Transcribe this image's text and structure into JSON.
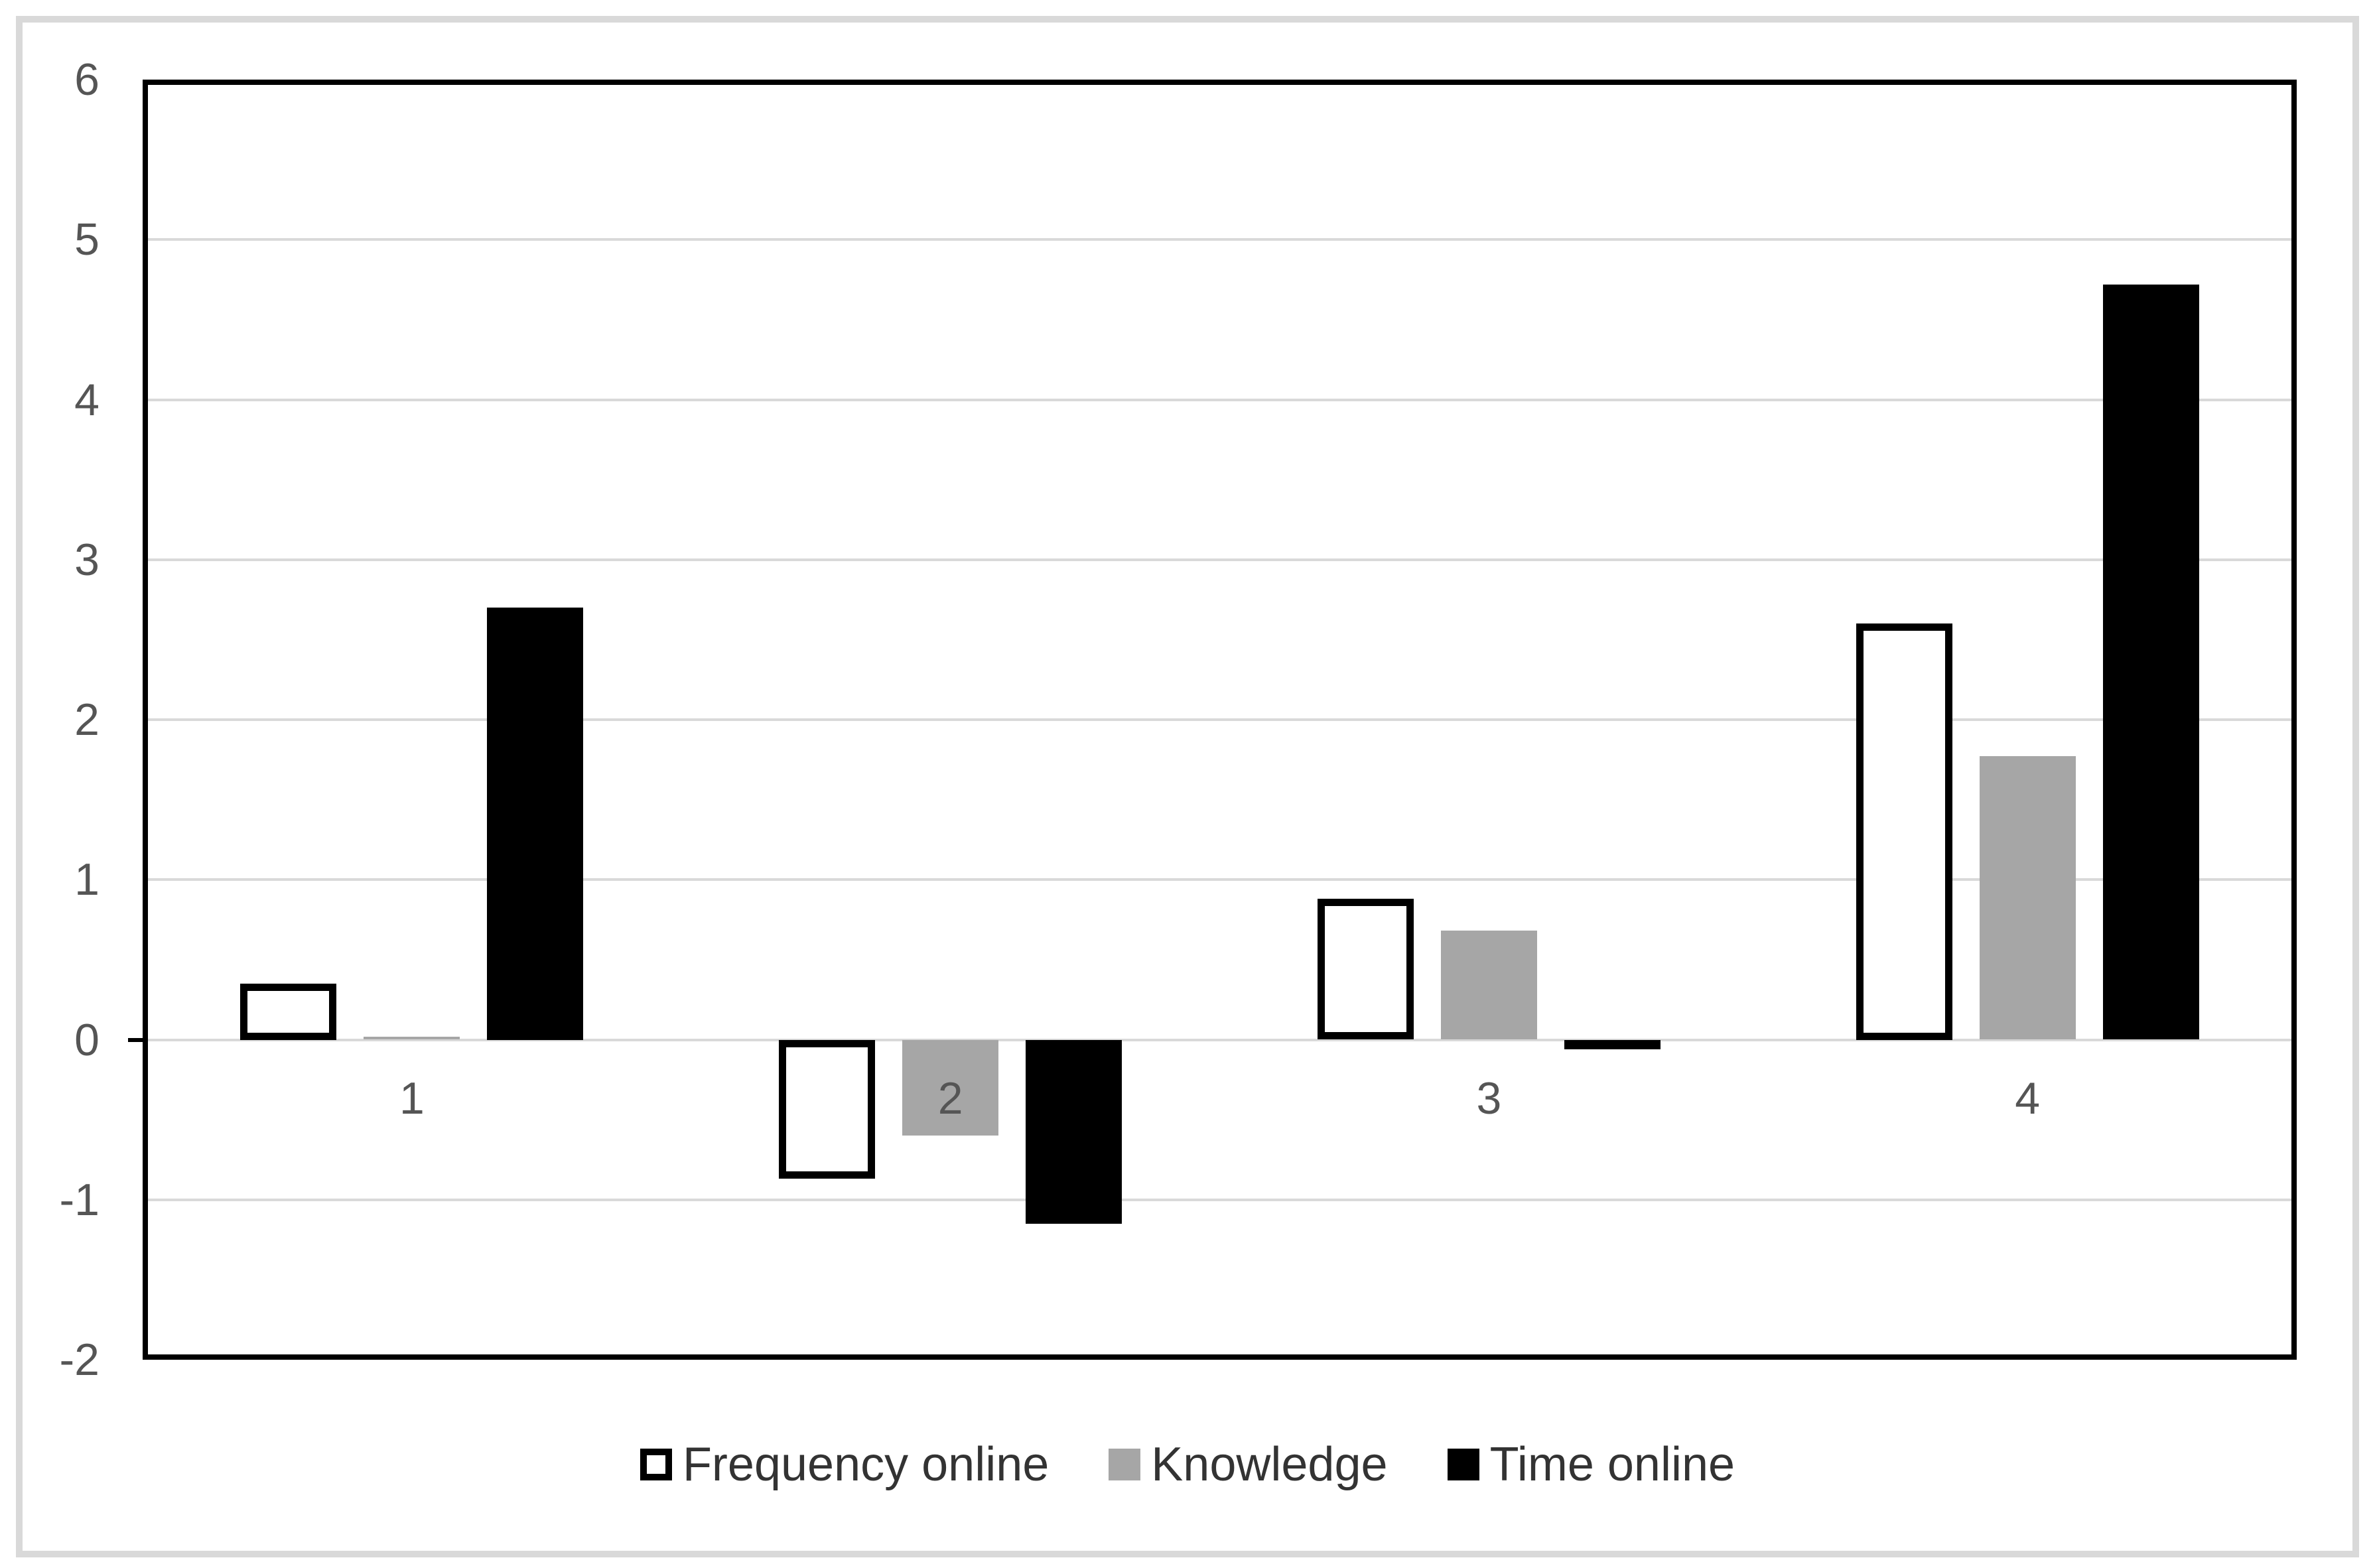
{
  "chart_data": {
    "type": "bar",
    "title": "",
    "xlabel": "",
    "ylabel": "",
    "categories": [
      "1",
      "2",
      "3",
      "4"
    ],
    "series": [
      {
        "name": "Frequency online",
        "values": [
          0.35,
          -0.87,
          0.88,
          2.6
        ],
        "fill": "#ffffff",
        "stroke": "#000000"
      },
      {
        "name": "Knowledge",
        "values": [
          0.02,
          -0.6,
          0.68,
          1.77
        ],
        "fill": "#a6a6a6",
        "stroke": ""
      },
      {
        "name": "Time online",
        "values": [
          2.7,
          -1.15,
          -0.06,
          4.72
        ],
        "fill": "#000000",
        "stroke": ""
      }
    ],
    "ylim": [
      -2,
      6
    ],
    "ytick_step": 1,
    "yticks": [
      "6",
      "5",
      "4",
      "3",
      "2",
      "1",
      "0",
      "-1",
      "-2"
    ],
    "grid": true,
    "legend_position": "bottom-center"
  },
  "colors": {
    "background": "#ffffff",
    "outer_border": "#d9d9d9",
    "plot_border": "#000000",
    "gridline": "#d9d9d9",
    "axis_tick_text": "#555555",
    "category_text": "#555555",
    "legend_text": "#333333"
  }
}
